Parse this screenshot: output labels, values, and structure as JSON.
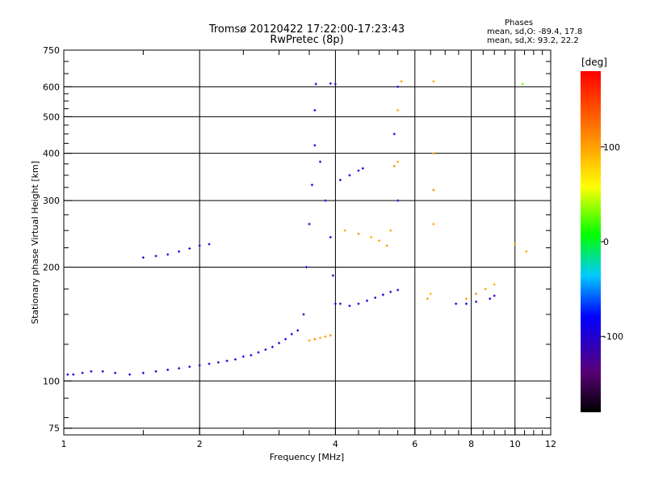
{
  "chart_data": {
    "type": "scatter",
    "title": "Tromsø 20120422 17:22:00-17:23:43",
    "subtitle": "RwPretec (8p)",
    "xlabel": "Frequency [MHz]",
    "ylabel": "Stationary phase Virtual Height [km]",
    "x_scale": "log",
    "y_scale": "log",
    "xlim": [
      1,
      12
    ],
    "ylim": [
      72,
      750
    ],
    "x_ticks": [
      "1",
      "2",
      "4",
      "6",
      "8",
      "10",
      "12"
    ],
    "y_ticks": [
      "75",
      "100",
      "200",
      "300",
      "400",
      "500",
      "600",
      "750"
    ],
    "grid": true,
    "phases_box": {
      "title": "Phases",
      "line_o": "mean, sd,O: -89.4, 17.8",
      "line_x": "mean, sd,X:  93.2, 22.2"
    },
    "colorbar": {
      "label": "[deg]",
      "range": [
        -180,
        180
      ],
      "ticks": [
        "100",
        "0",
        "-100"
      ]
    },
    "series": [
      {
        "values": [
          {
            "x": 1.02,
            "y": 104,
            "p": -100
          },
          {
            "x": 1.05,
            "y": 104,
            "p": -95
          },
          {
            "x": 1.1,
            "y": 105,
            "p": -100
          },
          {
            "x": 1.15,
            "y": 106,
            "p": -90
          },
          {
            "x": 1.22,
            "y": 106,
            "p": -100
          },
          {
            "x": 1.3,
            "y": 105,
            "p": -95
          },
          {
            "x": 1.4,
            "y": 104,
            "p": -100
          },
          {
            "x": 1.5,
            "y": 105,
            "p": -85
          },
          {
            "x": 1.6,
            "y": 106,
            "p": -100
          },
          {
            "x": 1.7,
            "y": 107,
            "p": -90
          },
          {
            "x": 1.8,
            "y": 108,
            "p": -100
          },
          {
            "x": 1.9,
            "y": 109,
            "p": -95
          },
          {
            "x": 2.0,
            "y": 110,
            "p": -100
          },
          {
            "x": 2.1,
            "y": 111,
            "p": -95
          },
          {
            "x": 2.2,
            "y": 112,
            "p": -100
          },
          {
            "x": 2.3,
            "y": 113,
            "p": -90
          },
          {
            "x": 2.4,
            "y": 114,
            "p": -100
          },
          {
            "x": 2.5,
            "y": 116,
            "p": -95
          },
          {
            "x": 2.6,
            "y": 117,
            "p": -100
          },
          {
            "x": 2.7,
            "y": 119,
            "p": -90
          },
          {
            "x": 2.8,
            "y": 121,
            "p": -100
          },
          {
            "x": 2.9,
            "y": 123,
            "p": -95
          },
          {
            "x": 3.0,
            "y": 126,
            "p": -100
          },
          {
            "x": 3.1,
            "y": 129,
            "p": -90
          },
          {
            "x": 3.2,
            "y": 133,
            "p": -100
          },
          {
            "x": 3.3,
            "y": 136,
            "p": -95
          },
          {
            "x": 1.5,
            "y": 212,
            "p": -100
          },
          {
            "x": 1.6,
            "y": 214,
            "p": -95
          },
          {
            "x": 1.7,
            "y": 216,
            "p": -100
          },
          {
            "x": 1.8,
            "y": 220,
            "p": -90
          },
          {
            "x": 1.9,
            "y": 224,
            "p": -100
          },
          {
            "x": 2.0,
            "y": 228,
            "p": -95
          },
          {
            "x": 2.1,
            "y": 230,
            "p": -100
          },
          {
            "x": 3.4,
            "y": 150,
            "p": -100
          },
          {
            "x": 3.45,
            "y": 200,
            "p": -95
          },
          {
            "x": 3.5,
            "y": 260,
            "p": -100
          },
          {
            "x": 3.55,
            "y": 330,
            "p": -90
          },
          {
            "x": 3.6,
            "y": 420,
            "p": -100
          },
          {
            "x": 3.6,
            "y": 520,
            "p": -95
          },
          {
            "x": 3.62,
            "y": 610,
            "p": -100
          },
          {
            "x": 3.7,
            "y": 380,
            "p": -95
          },
          {
            "x": 3.8,
            "y": 300,
            "p": -100
          },
          {
            "x": 3.9,
            "y": 240,
            "p": -90
          },
          {
            "x": 3.95,
            "y": 190,
            "p": -100
          },
          {
            "x": 4.0,
            "y": 160,
            "p": -95
          },
          {
            "x": 4.1,
            "y": 160,
            "p": -100
          },
          {
            "x": 4.3,
            "y": 158,
            "p": -90
          },
          {
            "x": 4.5,
            "y": 160,
            "p": -100
          },
          {
            "x": 4.7,
            "y": 163,
            "p": -95
          },
          {
            "x": 4.9,
            "y": 166,
            "p": -100
          },
          {
            "x": 5.1,
            "y": 169,
            "p": -90
          },
          {
            "x": 5.3,
            "y": 172,
            "p": -100
          },
          {
            "x": 5.5,
            "y": 174,
            "p": -95
          },
          {
            "x": 4.1,
            "y": 340,
            "p": -100
          },
          {
            "x": 4.3,
            "y": 350,
            "p": -95
          },
          {
            "x": 4.5,
            "y": 360,
            "p": -100
          },
          {
            "x": 4.6,
            "y": 365,
            "p": -90
          },
          {
            "x": 4.0,
            "y": 610,
            "p": -100
          },
          {
            "x": 3.9,
            "y": 612,
            "p": -95
          },
          {
            "x": 5.5,
            "y": 600,
            "p": -100
          },
          {
            "x": 5.4,
            "y": 450,
            "p": -95
          },
          {
            "x": 5.5,
            "y": 300,
            "p": -100
          },
          {
            "x": 7.4,
            "y": 160,
            "p": -100
          },
          {
            "x": 7.8,
            "y": 160,
            "p": -95
          },
          {
            "x": 8.2,
            "y": 162,
            "p": -100
          },
          {
            "x": 8.8,
            "y": 165,
            "p": -90
          },
          {
            "x": 9.0,
            "y": 168,
            "p": -100
          }
        ]
      },
      {
        "values": [
          {
            "x": 4.2,
            "y": 250,
            "p": 100
          },
          {
            "x": 4.5,
            "y": 245,
            "p": 110
          },
          {
            "x": 4.8,
            "y": 240,
            "p": 95
          },
          {
            "x": 5.0,
            "y": 235,
            "p": 100
          },
          {
            "x": 5.2,
            "y": 228,
            "p": 105
          },
          {
            "x": 5.3,
            "y": 250,
            "p": 100
          },
          {
            "x": 5.4,
            "y": 370,
            "p": 110
          },
          {
            "x": 5.5,
            "y": 380,
            "p": 100
          },
          {
            "x": 5.5,
            "y": 520,
            "p": 95
          },
          {
            "x": 5.6,
            "y": 620,
            "p": 100
          },
          {
            "x": 3.5,
            "y": 128,
            "p": 100
          },
          {
            "x": 3.6,
            "y": 129,
            "p": 110
          },
          {
            "x": 3.7,
            "y": 130,
            "p": 95
          },
          {
            "x": 3.8,
            "y": 131,
            "p": 100
          },
          {
            "x": 3.9,
            "y": 132,
            "p": 105
          },
          {
            "x": 6.4,
            "y": 165,
            "p": 100
          },
          {
            "x": 6.5,
            "y": 170,
            "p": 90
          },
          {
            "x": 6.6,
            "y": 260,
            "p": 100
          },
          {
            "x": 6.6,
            "y": 320,
            "p": 110
          },
          {
            "x": 6.6,
            "y": 400,
            "p": 100
          },
          {
            "x": 6.6,
            "y": 620,
            "p": 95
          },
          {
            "x": 7.8,
            "y": 165,
            "p": 100
          },
          {
            "x": 8.2,
            "y": 170,
            "p": 110
          },
          {
            "x": 8.6,
            "y": 175,
            "p": 100
          },
          {
            "x": 9.0,
            "y": 180,
            "p": 95
          },
          {
            "x": 10.0,
            "y": 230,
            "p": 100
          },
          {
            "x": 10.4,
            "y": 610,
            "p": 30
          },
          {
            "x": 10.6,
            "y": 220,
            "p": 95
          }
        ]
      }
    ]
  }
}
